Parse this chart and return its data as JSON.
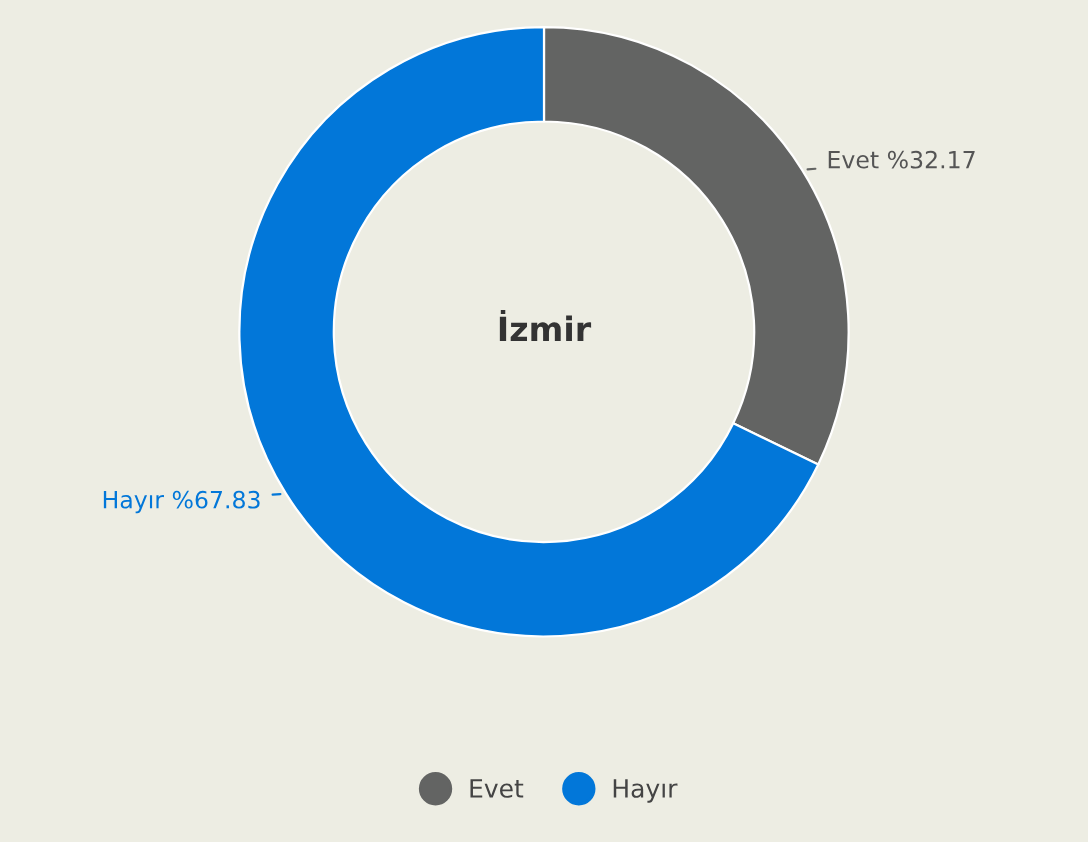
{
  "chart_data": {
    "type": "donut",
    "title": "İzmir",
    "categories": [
      "Evet",
      "Hayır"
    ],
    "values": [
      32.17,
      67.83
    ],
    "colors": [
      "#636463",
      "#0277d9"
    ],
    "value_labels": [
      "%32.17",
      "%67.83"
    ],
    "legend": "bottom"
  }
}
